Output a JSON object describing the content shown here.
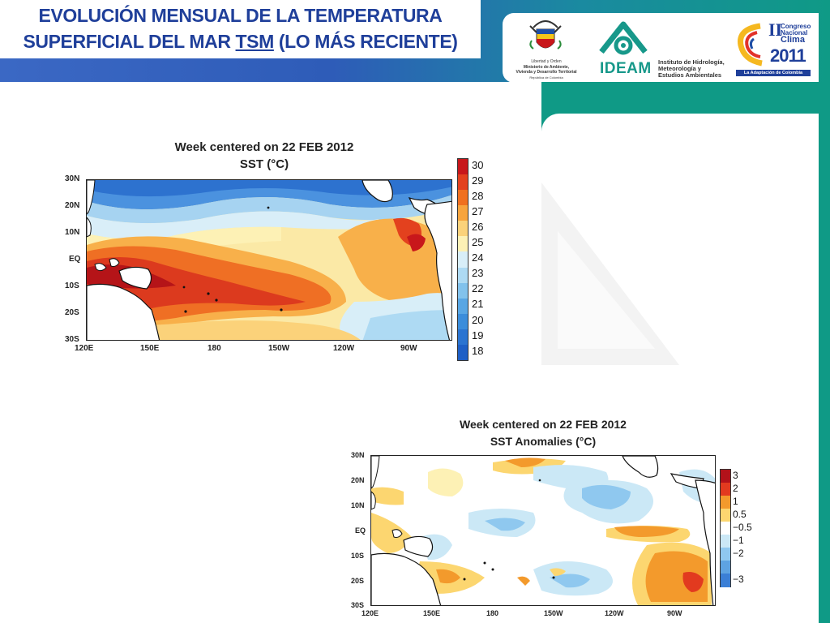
{
  "slide": {
    "title_line1": "EVOLUCIÓN MENSUAL DE LA TEMPERATURA",
    "title_line2_prefix": "SUPERFICIAL DEL MAR ",
    "title_line2_underlined": "TSM",
    "title_line2_suffix": " (LO MÁS RECIENTE)"
  },
  "logos": {
    "ministry": {
      "motto": "Libertad y Orden",
      "name_line1": "Ministerio de Ambiente,",
      "name_line2": "Vivienda y Desarrollo Territorial",
      "country": "República de Colombia"
    },
    "ideam": {
      "acronym": "IDEAM",
      "name_line1": "Instituto de Hidrología,",
      "name_line2": "Meteorología y",
      "name_line3": "Estudios Ambientales"
    },
    "congreso": {
      "numeral": "II",
      "line1": "Congreso",
      "line2": "Nacional",
      "line3": "Clima",
      "year": "2011",
      "tagline": "La Adaptación de Colombia"
    }
  },
  "map_sst": {
    "title": "Week centered on 22 FEB 2012",
    "subtitle": "SST (°C)",
    "lat_ticks": [
      "30N",
      "20N",
      "10N",
      "EQ",
      "10S",
      "20S",
      "30S"
    ],
    "lon_ticks": [
      "120E",
      "150E",
      "180",
      "150W",
      "120W",
      "90W"
    ],
    "colorbar_labels": [
      "30",
      "29",
      "28",
      "27",
      "26",
      "25",
      "24",
      "23",
      "22",
      "21",
      "20",
      "19",
      "18"
    ],
    "colorbar_colors": [
      "#c8171b",
      "#e3411e",
      "#f0701f",
      "#f7a43d",
      "#fbd27a",
      "#fdf1b5",
      "#d8eef8",
      "#aedaf3",
      "#82c2ec",
      "#58a6e4",
      "#3b8ddb",
      "#2b74d1",
      "#1e5fc6"
    ]
  },
  "map_anom": {
    "title": "Week centered on 22 FEB 2012",
    "subtitle": "SST Anomalies (°C)",
    "lat_ticks": [
      "30N",
      "20N",
      "10N",
      "EQ",
      "10S",
      "20S",
      "30S"
    ],
    "lon_ticks": [
      "120E",
      "150E",
      "180",
      "150W",
      "120W",
      "90W"
    ],
    "colorbar_labels": [
      "3",
      "2",
      "1",
      "0.5",
      "−0.5",
      "−1",
      "−2",
      "−3"
    ],
    "colorbar_colors": [
      "#b3121a",
      "#e23a1f",
      "#f39a2c",
      "#fcd670",
      "#ffffff",
      "#cbe8f6",
      "#8fc8ef",
      "#5ea3e2",
      "#3b7fd6"
    ]
  }
}
